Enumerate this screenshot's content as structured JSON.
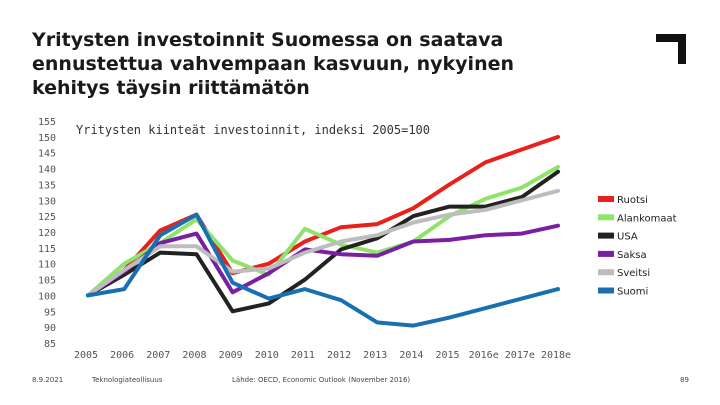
{
  "slide": {
    "title_lines": [
      "Yritysten investoinnit Suomessa on saatava",
      "ennustettua vahvempaan kasvuun, nykyinen",
      "kehitys täysin riittämätön"
    ],
    "footer": {
      "date": "8.9.2021",
      "organization": "Teknologiateollisuus",
      "source": "Lähde: OECD, Economic Outlook (November 2016)",
      "page_number": "89"
    },
    "brand_icon": "corner-bracket-logo"
  },
  "chart_data": {
    "type": "line",
    "title": "Yritysten kiinteät investoinnit, indeksi 2005=100",
    "xlabel": "",
    "ylabel": "",
    "ylim": [
      85,
      155
    ],
    "yticks": [
      85,
      90,
      95,
      100,
      105,
      110,
      115,
      120,
      125,
      130,
      135,
      140,
      145,
      150,
      155
    ],
    "grid": false,
    "legend_position": "right",
    "categories": [
      "2005",
      "2006",
      "2007",
      "2008",
      "2009",
      "2010",
      "2011",
      "2012",
      "2013",
      "2014",
      "2015",
      "2016e",
      "2017e",
      "2018e"
    ],
    "series": [
      {
        "name": "Ruotsi",
        "color": "#e8221b",
        "values": [
          100,
          108,
          120.5,
          125.5,
          107,
          110,
          117,
          121.5,
          122.5,
          127.5,
          135,
          142,
          146,
          150
        ]
      },
      {
        "name": "Alankomaat",
        "color": "#8ee46a",
        "values": [
          100,
          110,
          116.5,
          124,
          111,
          106.5,
          121,
          116,
          113.5,
          117,
          125,
          130.5,
          134,
          140.5
        ]
      },
      {
        "name": "USA",
        "color": "#222222",
        "values": [
          100,
          106.5,
          113.5,
          113,
          95,
          97.5,
          105,
          114.5,
          118,
          125,
          128,
          128,
          131,
          139
        ]
      },
      {
        "name": "Saksa",
        "color": "#7b1fa2",
        "values": [
          100,
          107.5,
          116.5,
          119.5,
          101,
          107,
          114.5,
          113,
          112.5,
          117,
          117.5,
          119,
          119.5,
          122
        ]
      },
      {
        "name": "Sveitsi",
        "color": "#bdbdbd",
        "values": [
          100,
          108,
          115.5,
          115.5,
          107.5,
          108.5,
          113.5,
          117,
          119,
          123,
          125.5,
          127,
          130,
          133
        ]
      },
      {
        "name": "Suomi",
        "color": "#1a6fb0",
        "values": [
          100,
          102,
          119,
          125.5,
          104,
          99,
          102,
          98.5,
          91.5,
          90.5,
          93,
          96,
          99,
          102
        ]
      }
    ]
  }
}
